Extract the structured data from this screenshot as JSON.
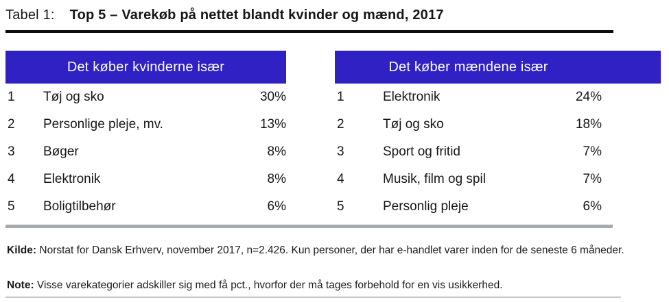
{
  "title": {
    "prefix": "Tabel 1:",
    "main": "Top 5 – Varekøb på nettet blandt kvinder og mænd, 2017"
  },
  "tables": [
    {
      "header": "Det køber kvinderne især",
      "rows": [
        {
          "rank": "1",
          "item": "Tøj og sko",
          "pct": "30%"
        },
        {
          "rank": "2",
          "item": "Personlige pleje, mv.",
          "pct": "13%"
        },
        {
          "rank": "3",
          "item": "Bøger",
          "pct": "8%"
        },
        {
          "rank": "4",
          "item": "Elektronik",
          "pct": "8%"
        },
        {
          "rank": "5",
          "item": "Boligtilbehør",
          "pct": "6%"
        }
      ]
    },
    {
      "header": "Det køber mændene især",
      "rows": [
        {
          "rank": "1",
          "item": "Elektronik",
          "pct": "24%"
        },
        {
          "rank": "2",
          "item": "Tøj og sko",
          "pct": "18%"
        },
        {
          "rank": "3",
          "item": "Sport og fritid",
          "pct": "7%"
        },
        {
          "rank": "4",
          "item": "Musik, film og spil",
          "pct": "7%"
        },
        {
          "rank": "5",
          "item": "Personlig pleje",
          "pct": "6%"
        }
      ]
    }
  ],
  "footer": {
    "kilde_label": "Kilde:",
    "kilde_text": "Norstat for Dansk Erhverv, november 2017, n=2.426. Kun personer, der har e-handlet varer inden for de seneste 6 måneder.",
    "note_label": "Note:",
    "note_text": "Visse varekategorier adskiller sig med få pct., hvorfor der må tages forbehold for en vis usikkerhed."
  },
  "colors": {
    "header_bg": "#2f21c4",
    "header_text": "#ffffff",
    "rule_dark": "#0d0d0d",
    "rule_gray": "#a5abb0",
    "rule_light": "#c6c6c6",
    "text": "#161616"
  }
}
